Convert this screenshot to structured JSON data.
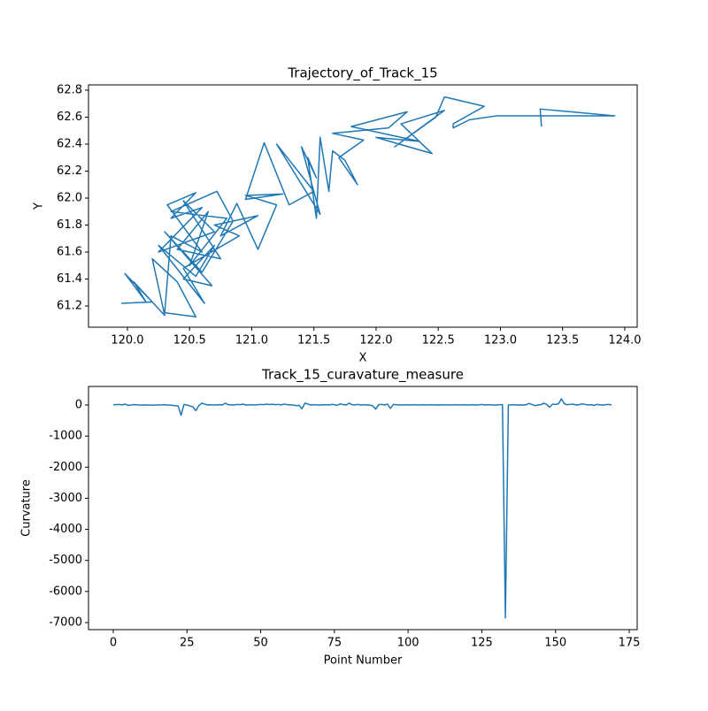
{
  "chart_data": [
    {
      "type": "line",
      "title": "Trajectory_of_Track_15",
      "xlabel": "X",
      "ylabel": "Y",
      "color": "#1f77b4",
      "x": [
        119.95,
        120.2,
        119.98,
        120.15,
        120.05,
        120.3,
        120.2,
        120.4,
        120.55,
        120.3,
        120.35,
        120.6,
        120.32,
        120.55,
        120.35,
        120.6,
        120.25,
        120.7,
        120.45,
        120.75,
        120.4,
        120.65,
        120.5,
        120.8,
        120.35,
        120.72,
        120.85,
        120.6,
        120.3,
        120.68,
        120.45,
        120.7,
        120.55,
        120.25,
        120.62,
        120.45,
        120.9,
        120.7,
        121.05,
        120.75,
        120.88,
        121.05,
        121.2,
        120.95,
        121.25,
        120.95,
        121.1,
        121.3,
        121.5,
        121.2,
        121.55,
        121.4,
        121.52,
        121.45,
        121.52,
        121.55,
        121.62,
        121.65,
        121.75,
        121.85,
        121.7,
        121.9,
        121.65,
        122.1,
        122.25,
        121.8,
        122.35,
        122.0,
        122.45,
        122.2,
        122.55,
        122.15,
        122.48,
        122.55,
        122.87,
        122.62,
        122.62,
        122.75,
        122.97,
        123.32,
        123.92,
        123.32,
        123.33
      ],
      "values": [
        61.22,
        61.23,
        61.44,
        61.23,
        61.38,
        61.13,
        61.55,
        61.38,
        61.12,
        61.15,
        61.72,
        61.6,
        61.95,
        62.04,
        61.85,
        61.93,
        61.6,
        61.75,
        61.98,
        61.55,
        61.62,
        61.9,
        61.5,
        61.85,
        61.9,
        62.05,
        61.83,
        61.45,
        61.75,
        61.35,
        61.4,
        61.65,
        61.42,
        61.65,
        61.22,
        61.48,
        61.72,
        61.8,
        61.87,
        61.72,
        61.96,
        61.62,
        61.95,
        62.02,
        62.03,
        61.99,
        62.41,
        61.95,
        62.05,
        62.4,
        61.88,
        62.38,
        62.15,
        62.3,
        61.85,
        62.45,
        62.05,
        62.35,
        62.28,
        62.1,
        62.3,
        62.43,
        62.48,
        62.52,
        62.64,
        62.53,
        62.42,
        62.45,
        62.33,
        62.55,
        62.65,
        62.38,
        62.6,
        62.75,
        62.68,
        62.55,
        62.52,
        62.58,
        62.61,
        62.61,
        62.61,
        62.66,
        62.53
      ],
      "xlim": [
        119.687,
        124.1
      ],
      "ylim": [
        61.043,
        62.839
      ],
      "xticks": [
        {
          "value": 120,
          "label": "120.0"
        },
        120.5,
        {
          "value": 121,
          "label": "121.0"
        },
        121.5,
        {
          "value": 122,
          "label": "122.0"
        },
        122.5,
        {
          "value": 123,
          "label": "123.0"
        },
        123.5,
        {
          "value": 124,
          "label": "124.0"
        }
      ],
      "yticks": [
        61.2,
        61.4,
        61.6,
        61.8,
        {
          "value": 62,
          "label": "62.0"
        },
        62.2,
        62.4,
        62.6,
        62.8
      ]
    },
    {
      "type": "line",
      "title": "Track_15_curavature_measure",
      "xlabel": "Point Number",
      "ylabel": "Curvature",
      "color": "#1f77b4",
      "x": [
        0,
        1,
        2,
        3,
        4,
        5,
        6,
        7,
        8,
        9,
        10,
        11,
        12,
        13,
        14,
        15,
        16,
        17,
        18,
        19,
        20,
        21,
        22,
        23,
        24,
        25,
        26,
        27,
        28,
        29,
        30,
        31,
        32,
        33,
        34,
        35,
        36,
        37,
        38,
        39,
        40,
        41,
        42,
        43,
        44,
        45,
        46,
        47,
        48,
        49,
        50,
        51,
        52,
        53,
        54,
        55,
        56,
        57,
        58,
        59,
        60,
        61,
        62,
        63,
        64,
        65,
        66,
        67,
        68,
        69,
        70,
        71,
        72,
        73,
        74,
        75,
        76,
        77,
        78,
        79,
        80,
        81,
        82,
        83,
        84,
        85,
        86,
        87,
        88,
        89,
        90,
        91,
        92,
        93,
        94,
        95,
        96,
        97,
        98,
        99,
        100,
        101,
        102,
        103,
        104,
        105,
        106,
        107,
        108,
        109,
        110,
        111,
        112,
        113,
        114,
        115,
        116,
        117,
        118,
        119,
        120,
        121,
        122,
        123,
        124,
        125,
        126,
        127,
        128,
        129,
        130,
        131,
        132,
        133,
        134,
        135,
        136,
        137,
        138,
        139,
        140,
        141,
        142,
        143,
        144,
        145,
        146,
        147,
        148,
        149,
        150,
        151,
        152,
        153,
        154,
        155,
        156,
        157,
        158,
        159,
        160,
        161,
        162,
        163,
        164,
        165,
        166,
        167,
        168,
        169
      ],
      "values": [
        10,
        12,
        20,
        5,
        30,
        -10,
        0,
        15,
        5,
        0,
        0,
        5,
        0,
        -5,
        0,
        0,
        0,
        10,
        0,
        0,
        -10,
        -20,
        -30,
        -330,
        20,
        0,
        -30,
        -60,
        -180,
        -20,
        60,
        30,
        0,
        10,
        0,
        5,
        10,
        0,
        60,
        10,
        5,
        0,
        20,
        10,
        30,
        0,
        5,
        10,
        0,
        10,
        20,
        10,
        30,
        15,
        25,
        10,
        20,
        5,
        30,
        10,
        5,
        0,
        -20,
        -10,
        -120,
        60,
        30,
        0,
        10,
        5,
        0,
        5,
        10,
        0,
        20,
        10,
        -10,
        40,
        10,
        5,
        60,
        10,
        5,
        20,
        0,
        10,
        0,
        0,
        -30,
        -130,
        10,
        20,
        0,
        30,
        -110,
        20,
        10,
        5,
        0,
        10,
        5,
        0,
        10,
        5,
        0,
        10,
        0,
        5,
        10,
        0,
        5,
        0,
        10,
        0,
        5,
        0,
        10,
        5,
        0,
        10,
        0,
        5,
        10,
        0,
        5,
        20,
        0,
        10,
        5,
        0,
        0,
        10,
        10,
        -6850,
        0,
        5,
        10,
        0,
        5,
        0,
        10,
        50,
        20,
        -20,
        0,
        10,
        60,
        20,
        -70,
        30,
        20,
        40,
        200,
        40,
        10,
        20,
        30,
        0,
        10,
        40,
        20,
        0,
        10,
        -10,
        20,
        5,
        0,
        10,
        20,
        5
      ],
      "xlim": [
        -8.4,
        177.7
      ],
      "ylim": [
        -7228,
        598
      ],
      "xticks": [
        0,
        25,
        50,
        75,
        100,
        125,
        150,
        175
      ],
      "yticks": [
        0,
        -1000,
        -2000,
        -3000,
        -4000,
        -5000,
        -6000,
        -7000
      ]
    }
  ]
}
